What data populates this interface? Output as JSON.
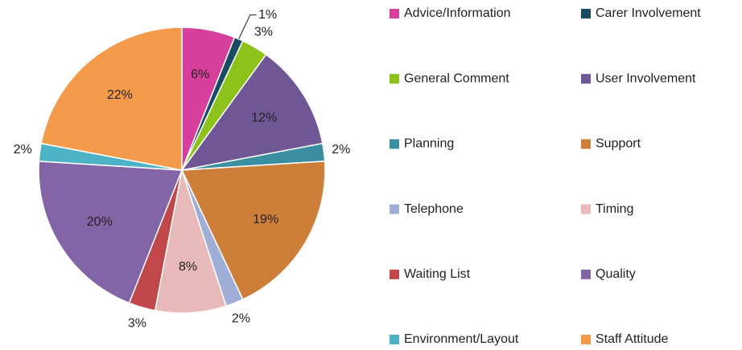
{
  "chart_data": {
    "type": "pie",
    "categories": [
      "Advice/Information",
      "Carer Involvement",
      "General Comment",
      "User Involvement",
      "Planning",
      "Support",
      "Telephone",
      "Timing",
      "Waiting List",
      "Quality",
      "Environment/Layout",
      "Staff Attitude"
    ],
    "values": [
      6,
      1,
      3,
      12,
      2,
      19,
      2,
      8,
      3,
      20,
      2,
      22
    ],
    "value_labels": [
      "6%",
      "1%",
      "3%",
      "12%",
      "2%",
      "19%",
      "2%",
      "8%",
      "3%",
      "20%",
      "2%",
      "22%"
    ],
    "colors": [
      "#d63f9c",
      "#1a4a63",
      "#8cc21a",
      "#6f5796",
      "#3a8fa0",
      "#cd7f3a",
      "#9eaed6",
      "#e8b9b9",
      "#c0474a",
      "#8364a6",
      "#4cb3c7",
      "#f49a4b"
    ],
    "legend": "right"
  }
}
